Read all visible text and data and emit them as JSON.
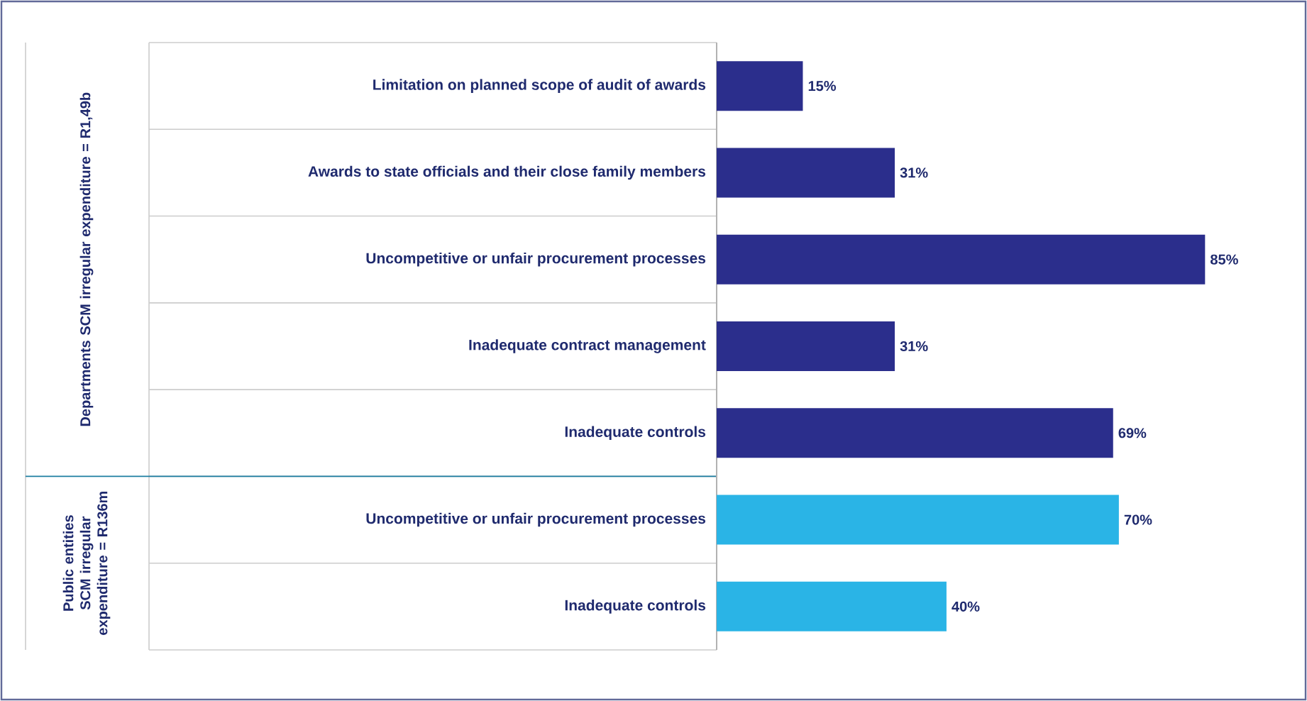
{
  "chart_data": {
    "type": "bar",
    "orientation": "horizontal",
    "categories": [
      "Limitation on planned scope of audit of awards",
      "Awards to state officials and their close family members",
      "Uncompetitive or unfair procurement processes",
      "Inadequate contract management",
      "Inadequate controls",
      "Uncompetitive or unfair procurement processes",
      "Inadequate controls"
    ],
    "values": [
      15,
      31,
      85,
      31,
      69,
      70,
      40
    ],
    "colors": [
      "#2b2e8c",
      "#2b2e8c",
      "#2b2e8c",
      "#2b2e8c",
      "#2b2e8c",
      "#2ab4e6",
      "#2ab4e6"
    ],
    "value_labels": [
      "15%",
      "31%",
      "85%",
      "31%",
      "69%",
      "70%",
      "40%"
    ],
    "annotations": [
      "Departments SCM irregular expenditure = R1,49b",
      "Public entities SCM irregular expenditure = R136m"
    ]
  }
}
